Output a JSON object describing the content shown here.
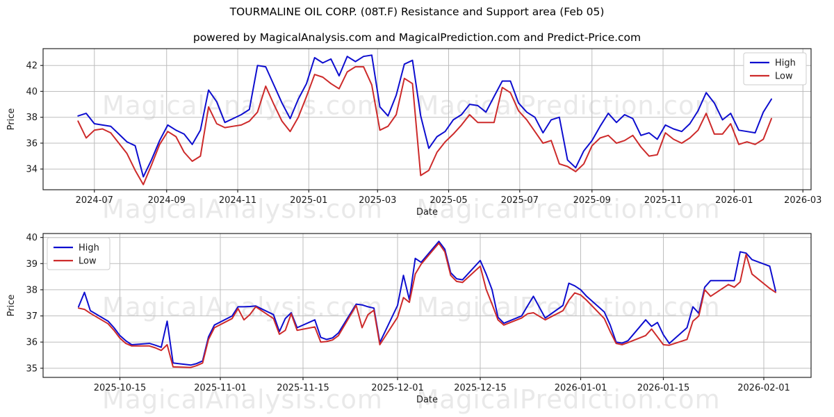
{
  "title": "TOURMALINE OIL CORP. (08T.F) Resistance and Support area (Feb 05)",
  "subtitle": "powered by MagicalAnalysis.com and MagicalPrediction.com and Predict-Price.com",
  "watermarks": {
    "left_text": "MagicalAnalysis.com",
    "right_text": "MagicalPrediction.com"
  },
  "colors": {
    "high": "#0d0dcf",
    "low": "#cd2a2a",
    "grid": "#bdbdbd",
    "spine": "#262626",
    "tick_label": "#1a1a1a",
    "watermark": "#e9e9e9",
    "legend_border": "#cccccc",
    "legend_bg": "#ffffff"
  },
  "chart_data": [
    {
      "type": "line",
      "xlabel": "Date",
      "ylabel": "Price",
      "legend": [
        "High",
        "Low"
      ],
      "legend_position": "top-right",
      "grid": true,
      "ylim": [
        32.4,
        43.3
      ],
      "yticks": [
        34,
        36,
        38,
        40,
        42
      ],
      "xlim": [
        "2024-05-18",
        "2026-03-08"
      ],
      "xticks": [
        "2024-07-01",
        "2024-09-01",
        "2024-11-01",
        "2025-01-01",
        "2025-03-01",
        "2025-05-01",
        "2025-07-01",
        "2025-09-01",
        "2025-11-01",
        "2026-01-01",
        "2026-03-01"
      ],
      "xtick_labels": [
        "2024-07",
        "2024-09",
        "2024-11",
        "2025-01",
        "2025-03",
        "2025-05",
        "2025-07",
        "2025-09",
        "2025-11",
        "2026-01",
        "2026-03"
      ],
      "dates": [
        "2024-06-17",
        "2024-06-24",
        "2024-07-01",
        "2024-07-08",
        "2024-07-15",
        "2024-07-22",
        "2024-07-29",
        "2024-08-05",
        "2024-08-12",
        "2024-08-19",
        "2024-08-26",
        "2024-09-02",
        "2024-09-09",
        "2024-09-16",
        "2024-09-23",
        "2024-09-30",
        "2024-10-07",
        "2024-10-14",
        "2024-10-21",
        "2024-10-28",
        "2024-11-04",
        "2024-11-11",
        "2024-11-18",
        "2024-11-25",
        "2024-12-02",
        "2024-12-09",
        "2024-12-16",
        "2024-12-23",
        "2024-12-30",
        "2025-01-06",
        "2025-01-13",
        "2025-01-20",
        "2025-01-27",
        "2025-02-03",
        "2025-02-10",
        "2025-02-17",
        "2025-02-24",
        "2025-03-03",
        "2025-03-10",
        "2025-03-17",
        "2025-03-24",
        "2025-03-31",
        "2025-04-07",
        "2025-04-14",
        "2025-04-21",
        "2025-04-28",
        "2025-05-05",
        "2025-05-12",
        "2025-05-19",
        "2025-05-26",
        "2025-06-02",
        "2025-06-09",
        "2025-06-16",
        "2025-06-23",
        "2025-06-30",
        "2025-07-07",
        "2025-07-14",
        "2025-07-21",
        "2025-07-28",
        "2025-08-04",
        "2025-08-11",
        "2025-08-18",
        "2025-08-25",
        "2025-09-01",
        "2025-09-08",
        "2025-09-15",
        "2025-09-22",
        "2025-09-29",
        "2025-10-06",
        "2025-10-13",
        "2025-10-20",
        "2025-10-27",
        "2025-11-03",
        "2025-11-10",
        "2025-11-17",
        "2025-11-24",
        "2025-12-01",
        "2025-12-08",
        "2025-12-15",
        "2025-12-22",
        "2025-12-29",
        "2026-01-05",
        "2026-01-12",
        "2026-01-19",
        "2026-01-26",
        "2026-02-02"
      ],
      "series": [
        {
          "name": "High",
          "color_key": "high",
          "values": [
            38.1,
            38.3,
            37.5,
            37.4,
            37.3,
            36.7,
            36.1,
            35.8,
            33.4,
            34.7,
            36.2,
            37.4,
            37.0,
            36.7,
            35.9,
            37.0,
            40.1,
            39.2,
            37.6,
            37.9,
            38.2,
            38.6,
            42.0,
            41.9,
            40.5,
            39.1,
            37.9,
            39.4,
            40.6,
            42.6,
            42.2,
            42.5,
            41.2,
            42.7,
            42.3,
            42.7,
            42.8,
            38.8,
            38.1,
            39.7,
            42.1,
            42.4,
            38.1,
            35.6,
            36.5,
            36.9,
            37.8,
            38.2,
            39.0,
            38.9,
            38.4,
            39.6,
            40.8,
            40.8,
            39.1,
            38.4,
            38.0,
            36.8,
            37.8,
            38.0,
            34.7,
            34.1,
            35.4,
            36.2,
            37.3,
            38.3,
            37.6,
            38.2,
            37.9,
            36.6,
            36.8,
            36.3,
            37.4,
            37.1,
            36.9,
            37.5,
            38.5,
            39.9,
            39.1,
            37.8,
            38.3,
            37.0,
            36.9,
            36.8,
            38.4,
            39.4
          ]
        },
        {
          "name": "Low",
          "color_key": "low",
          "values": [
            37.7,
            36.4,
            37.0,
            37.1,
            36.8,
            36.0,
            35.2,
            33.9,
            32.8,
            34.3,
            35.9,
            36.9,
            36.5,
            35.3,
            34.6,
            35.0,
            38.8,
            37.5,
            37.2,
            37.3,
            37.4,
            37.7,
            38.4,
            40.4,
            39.0,
            37.7,
            36.9,
            38.0,
            39.6,
            41.3,
            41.1,
            40.6,
            40.2,
            41.5,
            41.9,
            41.9,
            40.5,
            37.0,
            37.3,
            38.2,
            41.0,
            40.6,
            33.5,
            33.9,
            35.3,
            36.1,
            36.7,
            37.4,
            38.2,
            37.6,
            37.6,
            37.6,
            40.3,
            39.9,
            38.5,
            37.8,
            36.9,
            36.0,
            36.2,
            34.4,
            34.2,
            33.8,
            34.4,
            35.8,
            36.4,
            36.6,
            36.0,
            36.2,
            36.6,
            35.7,
            35.0,
            35.1,
            36.8,
            36.3,
            36.0,
            36.4,
            37.0,
            38.3,
            36.7,
            36.7,
            37.5,
            35.9,
            36.1,
            35.9,
            36.3,
            37.9
          ]
        }
      ]
    },
    {
      "type": "line",
      "xlabel": "Date",
      "ylabel": "Price",
      "legend": [
        "High",
        "Low"
      ],
      "legend_position": "top-left",
      "grid": true,
      "ylim": [
        34.65,
        40.15
      ],
      "yticks": [
        35,
        36,
        37,
        38,
        39,
        40
      ],
      "xlim": [
        "2025-10-02",
        "2026-02-09"
      ],
      "xticks": [
        "2025-10-15",
        "2025-11-01",
        "2025-11-15",
        "2025-12-01",
        "2025-12-15",
        "2026-01-01",
        "2026-01-15",
        "2026-02-01"
      ],
      "xtick_labels": [
        "2025-10-15",
        "2025-11-01",
        "2025-11-15",
        "2025-12-01",
        "2025-12-15",
        "2026-01-01",
        "2026-01-15",
        "2026-02-01"
      ],
      "dates": [
        "2025-10-08",
        "2025-10-09",
        "2025-10-10",
        "2025-10-13",
        "2025-10-14",
        "2025-10-15",
        "2025-10-16",
        "2025-10-17",
        "2025-10-20",
        "2025-10-21",
        "2025-10-22",
        "2025-10-23",
        "2025-10-24",
        "2025-10-27",
        "2025-10-28",
        "2025-10-29",
        "2025-10-30",
        "2025-10-31",
        "2025-11-03",
        "2025-11-04",
        "2025-11-05",
        "2025-11-06",
        "2025-11-07",
        "2025-11-10",
        "2025-11-11",
        "2025-11-12",
        "2025-11-13",
        "2025-11-14",
        "2025-11-17",
        "2025-11-18",
        "2025-11-19",
        "2025-11-20",
        "2025-11-21",
        "2025-11-24",
        "2025-11-25",
        "2025-11-26",
        "2025-11-27",
        "2025-11-28",
        "2025-12-01",
        "2025-12-02",
        "2025-12-03",
        "2025-12-04",
        "2025-12-05",
        "2025-12-08",
        "2025-12-09",
        "2025-12-10",
        "2025-12-11",
        "2025-12-12",
        "2025-12-15",
        "2025-12-16",
        "2025-12-17",
        "2025-12-18",
        "2025-12-19",
        "2025-12-22",
        "2025-12-23",
        "2025-12-24",
        "2025-12-26",
        "2025-12-29",
        "2025-12-30",
        "2025-12-31",
        "2026-01-01",
        "2026-01-02",
        "2026-01-05",
        "2026-01-06",
        "2026-01-07",
        "2026-01-08",
        "2026-01-09",
        "2026-01-12",
        "2026-01-13",
        "2026-01-14",
        "2026-01-15",
        "2026-01-16",
        "2026-01-19",
        "2026-01-20",
        "2026-01-21",
        "2026-01-22",
        "2026-01-23",
        "2026-01-26",
        "2026-01-27",
        "2026-01-28",
        "2026-01-29",
        "2026-01-30",
        "2026-02-02",
        "2026-02-03"
      ],
      "series": [
        {
          "name": "High",
          "color_key": "high",
          "values": [
            37.35,
            37.9,
            37.2,
            36.8,
            36.55,
            36.25,
            36.05,
            35.9,
            35.95,
            35.88,
            35.8,
            36.8,
            35.2,
            35.12,
            35.18,
            35.28,
            36.2,
            36.65,
            37.0,
            37.35,
            37.35,
            37.36,
            37.38,
            37.05,
            36.4,
            36.9,
            37.12,
            36.55,
            36.85,
            36.18,
            36.1,
            36.16,
            36.35,
            37.45,
            37.42,
            37.35,
            37.3,
            35.98,
            37.4,
            38.55,
            37.62,
            39.2,
            39.05,
            39.85,
            39.55,
            38.65,
            38.42,
            38.38,
            39.12,
            38.6,
            38.0,
            36.95,
            36.72,
            37.0,
            37.38,
            37.75,
            36.92,
            37.4,
            38.25,
            38.15,
            38.0,
            37.75,
            37.15,
            36.65,
            36.0,
            35.96,
            36.05,
            36.85,
            36.6,
            36.75,
            36.28,
            35.95,
            36.55,
            37.35,
            37.1,
            38.1,
            38.35,
            38.35,
            38.35,
            39.45,
            39.4,
            39.15,
            38.9,
            37.95
          ]
        },
        {
          "name": "Low",
          "color_key": "low",
          "values": [
            37.3,
            37.25,
            37.1,
            36.7,
            36.45,
            36.15,
            35.95,
            35.85,
            35.85,
            35.78,
            35.68,
            35.9,
            35.05,
            35.03,
            35.1,
            35.2,
            36.1,
            36.55,
            36.9,
            37.28,
            36.85,
            37.05,
            37.35,
            36.9,
            36.3,
            36.45,
            37.08,
            36.45,
            36.58,
            36.0,
            36.02,
            36.08,
            36.25,
            37.4,
            36.55,
            37.05,
            37.22,
            35.9,
            36.95,
            37.7,
            37.52,
            38.6,
            38.98,
            39.78,
            39.45,
            38.55,
            38.32,
            38.28,
            38.9,
            38.02,
            37.45,
            36.85,
            36.65,
            36.92,
            37.08,
            37.12,
            36.85,
            37.2,
            37.6,
            37.88,
            37.8,
            37.6,
            36.9,
            36.4,
            35.95,
            35.9,
            35.98,
            36.25,
            36.5,
            36.2,
            35.9,
            35.88,
            36.1,
            36.8,
            37.0,
            38.0,
            37.75,
            38.2,
            38.1,
            38.3,
            39.35,
            38.6,
            38.05,
            37.9
          ]
        }
      ]
    }
  ]
}
